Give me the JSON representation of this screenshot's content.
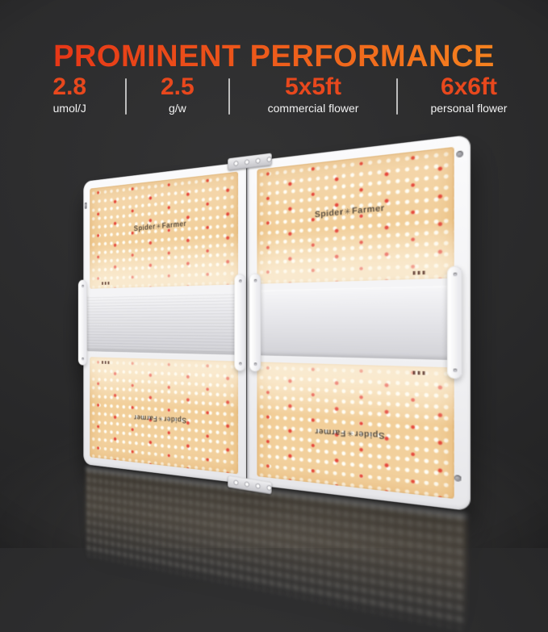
{
  "header": {
    "title": "PROMINENT PERFORMANCE",
    "gradient": [
      "#e63517",
      "#f5831f"
    ]
  },
  "stats": {
    "accent_color": "#e8481d",
    "divider_color": "#d6d6d6",
    "items": [
      {
        "value": "2.8",
        "label": "umol/J"
      },
      {
        "value": "2.5",
        "label": "g/w"
      },
      {
        "value": "5x5ft",
        "label": "commercial flower"
      },
      {
        "value": "6x6ft",
        "label": "personal flower"
      }
    ]
  },
  "product": {
    "brand": "Spider Farmer",
    "logo": {
      "left": "Spider",
      "right": "Farmer"
    },
    "colors": {
      "frame": "#f4f4f6",
      "board": "#f2cf9a",
      "white_led": "#fffef6",
      "red_led": "#e5473a",
      "heatsink_band": "#e3e3e7",
      "background": "#2a2a2b"
    }
  }
}
